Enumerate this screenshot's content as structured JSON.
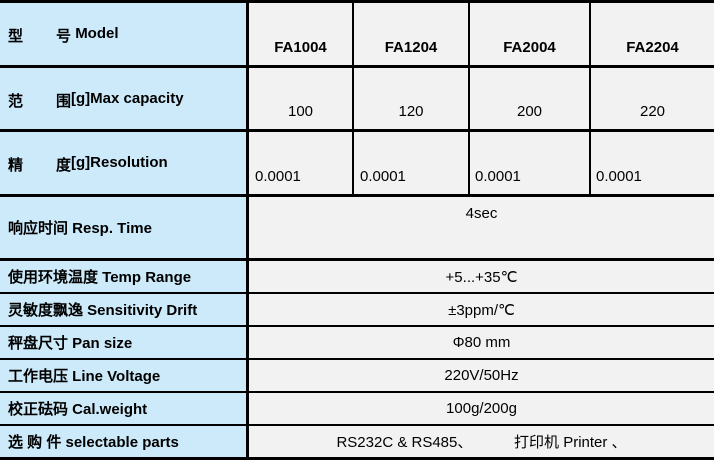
{
  "header": {
    "label_cn1": "型",
    "label_cn2": "号",
    "label_en": "Model",
    "models": [
      "FA1004",
      "FA1204",
      "FA2004",
      "FA2204"
    ]
  },
  "capacity": {
    "label_cn1": "范",
    "label_cn2": "围",
    "label_en": "[g]Max capacity",
    "values": [
      "100",
      "120",
      "200",
      "220"
    ]
  },
  "resolution": {
    "label_cn1": "精",
    "label_cn2": "度",
    "label_en": "[g]Resolution",
    "values": [
      "0.0001",
      "0.0001",
      "0.0001",
      "0.0001"
    ]
  },
  "rows": [
    {
      "label": "响应时间 Resp. Time",
      "value": "4sec"
    },
    {
      "label": "使用环境温度  Temp Range",
      "value": "+5...+35℃"
    },
    {
      "label": "灵敏度飘逸 Sensitivity Drift",
      "value": "±3ppm/℃"
    },
    {
      "label": "秤盘尺寸 Pan size",
      "value": "Φ80 mm"
    },
    {
      "label": "工作电压  Line Voltage",
      "value": "220V/50Hz"
    },
    {
      "label": "校正砝码  Cal.weight",
      "value": "100g/200g"
    },
    {
      "label": "选 购 件 selectable parts",
      "value": "RS232C & RS485、          打印机 Printer 、"
    }
  ]
}
